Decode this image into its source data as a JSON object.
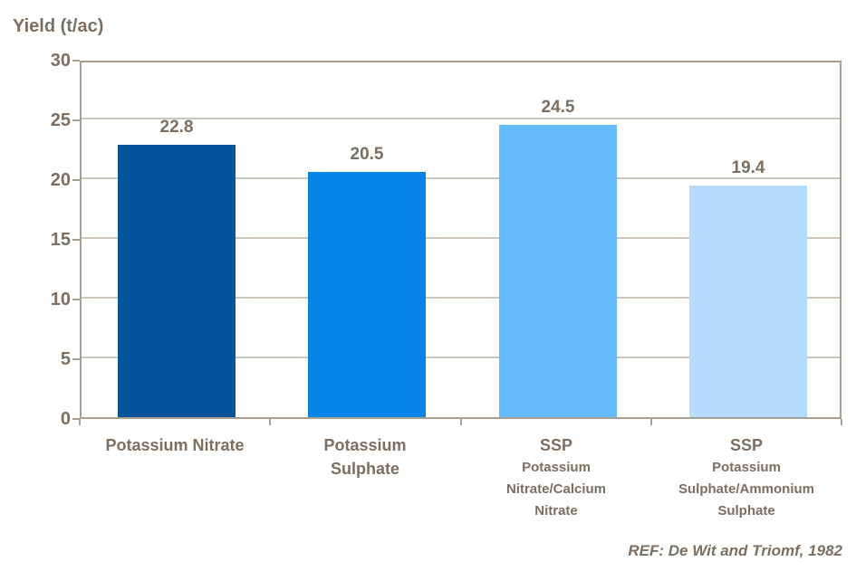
{
  "chart": {
    "title": "Yield (t/ac)",
    "footer": "REF: De Wit and Triomf, 1982"
  },
  "chart_data": {
    "type": "bar",
    "title": "Yield (t/ac)",
    "ylabel": "Yield (t/ac)",
    "xlabel": "",
    "categories": [
      "Potassium Nitrate",
      "Potassium Sulphate",
      "SSP Potassium Nitrate/Calcium Nitrate",
      "SSP Potassium Sulphate/Ammonium Sulphate"
    ],
    "category_lines": [
      {
        "main": [
          "Potassium Nitrate"
        ],
        "sub": []
      },
      {
        "main": [
          "Potassium",
          "Sulphate"
        ],
        "sub": []
      },
      {
        "main": [
          "SSP"
        ],
        "sub": [
          "Potassium",
          "Nitrate/Calcium",
          "Nitrate"
        ]
      },
      {
        "main": [
          "SSP"
        ],
        "sub": [
          "Potassium",
          "Sulphate/Ammonium",
          "Sulphate"
        ]
      }
    ],
    "values": [
      22.8,
      20.5,
      24.5,
      19.4
    ],
    "data_labels": [
      "22.8",
      "20.5",
      "24.5",
      "19.4"
    ],
    "bar_colors": [
      "#04549b",
      "#0884e8",
      "#66bbff",
      "#b5dcfd"
    ],
    "ylim": [
      0,
      30
    ],
    "yticks": [
      0,
      5,
      10,
      15,
      20,
      25,
      30
    ],
    "grid": true,
    "legend": false,
    "annotation": "REF: De Wit and Triomf, 1982",
    "colors": {
      "text": "#7d6e61",
      "axis": "#a89e91",
      "gridline": "#cdc6bc",
      "background": "#ffffff"
    }
  }
}
